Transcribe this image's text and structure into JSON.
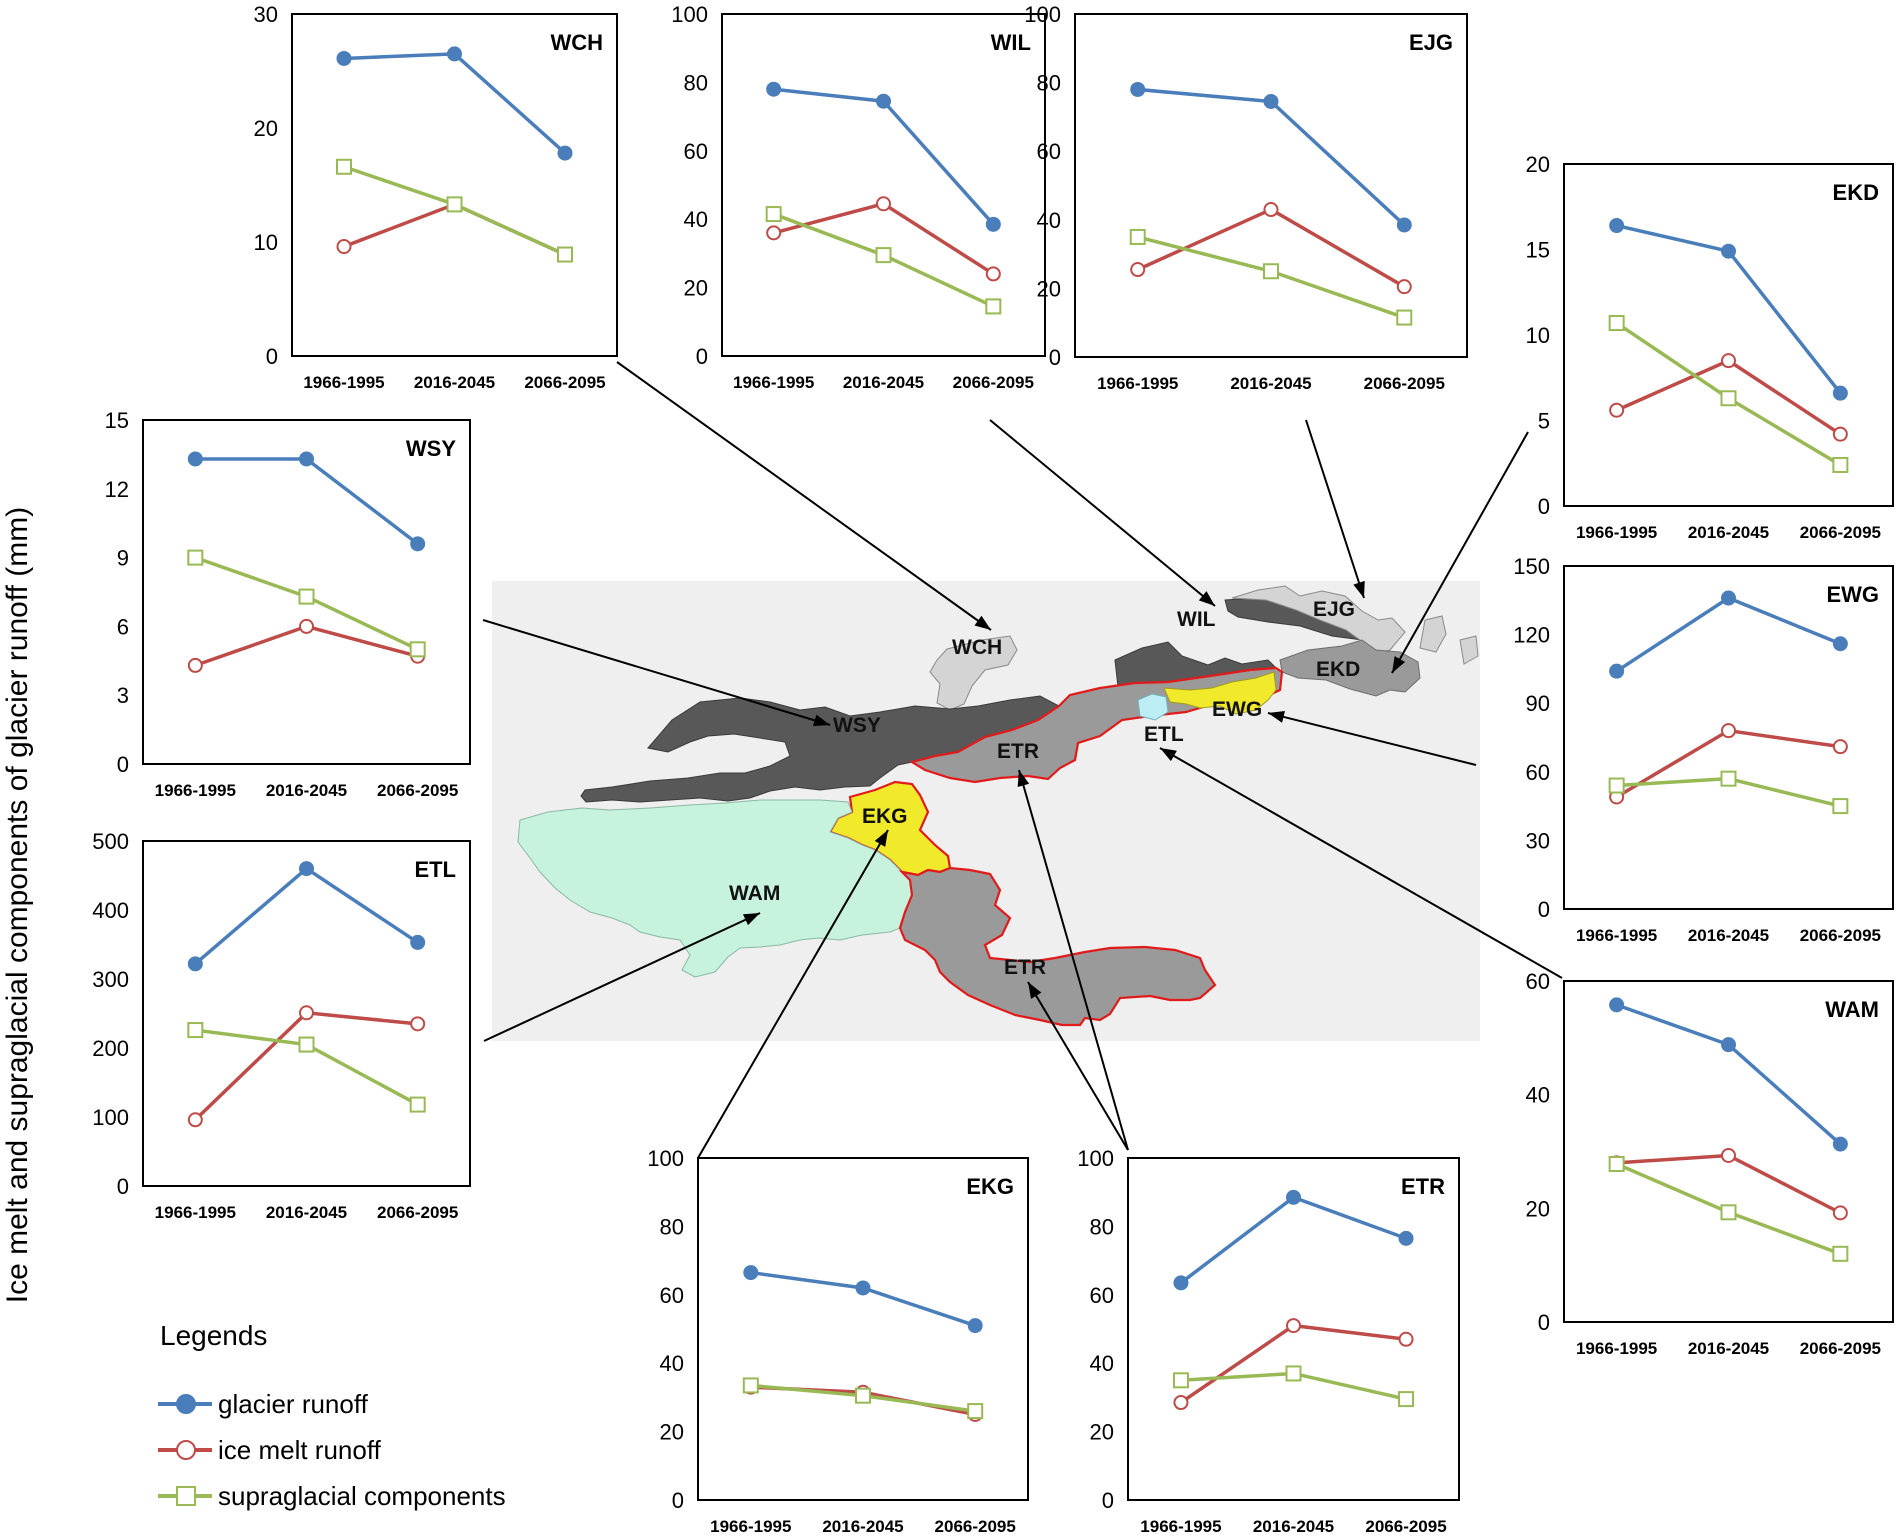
{
  "figure": {
    "ylabel": "Ice melt and supraglacial components of glacier runoff (mm)"
  },
  "legend": {
    "title": "Legends",
    "items": [
      {
        "name": "glacier runoff",
        "color": "#4a7ebb",
        "marker": "filled-circle"
      },
      {
        "name": "ice melt runoff",
        "color": "#be4b48",
        "marker": "open-circle"
      },
      {
        "name": "supraglacial components",
        "color": "#98b954",
        "marker": "open-square"
      }
    ]
  },
  "colors": {
    "glacier": "#4a7ebb",
    "icemelt": "#be4b48",
    "supra": "#98b954",
    "map_background": "#efefef",
    "basin_dark": "#585858",
    "basin_mid": "#9a9a9a",
    "basin_light": "#d4d4d4",
    "basin_yellow": "#f0ea2a",
    "basin_mint": "#c6f2de",
    "basin_cyan": "#bdeef5",
    "boundary_red": "#e21a1a"
  },
  "map": {
    "labels": [
      "WCH",
      "WSY",
      "WIL",
      "EJG",
      "EKD",
      "EWG",
      "ETL",
      "ETR",
      "EKG",
      "WAM",
      "ETR"
    ]
  },
  "chart_data": [
    {
      "type": "line",
      "title": "WCH",
      "categories": [
        "1966-1995",
        "2016-2045",
        "2066-2095"
      ],
      "ylim": [
        0,
        30
      ],
      "yticks": [
        "0",
        "10",
        "20",
        "30"
      ],
      "series": [
        {
          "name": "glacier runoff",
          "values": [
            26.1,
            26.5,
            17.8
          ]
        },
        {
          "name": "ice melt runoff",
          "values": [
            9.6,
            13.3,
            8.9
          ]
        },
        {
          "name": "supraglacial components",
          "values": [
            16.6,
            13.3,
            8.9
          ]
        }
      ]
    },
    {
      "type": "line",
      "title": "WIL",
      "categories": [
        "1966-1995",
        "2016-2045",
        "2066-2095"
      ],
      "ylim": [
        0,
        100
      ],
      "yticks": [
        "0",
        "20",
        "40",
        "60",
        "80",
        "100"
      ],
      "series": [
        {
          "name": "glacier runoff",
          "values": [
            78,
            74.5,
            38.5
          ]
        },
        {
          "name": "ice melt runoff",
          "values": [
            36,
            44.5,
            24
          ]
        },
        {
          "name": "supraglacial components",
          "values": [
            41.5,
            29.5,
            14.5
          ]
        }
      ]
    },
    {
      "type": "line",
      "title": "EJG",
      "categories": [
        "1966-1995",
        "2016-2045",
        "2066-2095"
      ],
      "ylim": [
        0,
        100
      ],
      "yticks": [
        "0",
        "20",
        "40",
        "60",
        "80",
        "100"
      ],
      "series": [
        {
          "name": "glacier runoff",
          "values": [
            78,
            74.5,
            38.5
          ]
        },
        {
          "name": "ice melt runoff",
          "values": [
            25.5,
            43,
            20.5
          ]
        },
        {
          "name": "supraglacial components",
          "values": [
            35,
            25,
            11.5
          ]
        }
      ]
    },
    {
      "type": "line",
      "title": "EKD",
      "categories": [
        "1966-1995",
        "2016-2045",
        "2066-2095"
      ],
      "ylim": [
        0,
        20
      ],
      "yticks": [
        "0",
        "5",
        "10",
        "15",
        "20"
      ],
      "series": [
        {
          "name": "glacier runoff",
          "values": [
            16.4,
            14.9,
            6.6
          ]
        },
        {
          "name": "ice melt runoff",
          "values": [
            5.6,
            8.5,
            4.2
          ]
        },
        {
          "name": "supraglacial components",
          "values": [
            10.7,
            6.3,
            2.4
          ]
        }
      ]
    },
    {
      "type": "line",
      "title": "WSY",
      "categories": [
        "1966-1995",
        "2016-2045",
        "2066-2095"
      ],
      "ylim": [
        0,
        15
      ],
      "yticks": [
        "0",
        "3",
        "6",
        "9",
        "12",
        "15"
      ],
      "series": [
        {
          "name": "glacier runoff",
          "values": [
            13.3,
            13.3,
            9.6
          ]
        },
        {
          "name": "ice melt runoff",
          "values": [
            4.3,
            6.0,
            4.7
          ]
        },
        {
          "name": "supraglacial components",
          "values": [
            9.0,
            7.3,
            5.0
          ]
        }
      ]
    },
    {
      "type": "line",
      "title": "EWG",
      "categories": [
        "1966-1995",
        "2016-2045",
        "2066-2095"
      ],
      "ylim": [
        0,
        150
      ],
      "yticks": [
        "0",
        "30",
        "60",
        "90",
        "120",
        "150"
      ],
      "series": [
        {
          "name": "glacier runoff",
          "values": [
            104,
            136,
            116
          ]
        },
        {
          "name": "ice melt runoff",
          "values": [
            49,
            78,
            71
          ]
        },
        {
          "name": "supraglacial components",
          "values": [
            54,
            57,
            45
          ]
        }
      ]
    },
    {
      "type": "line",
      "title": "WAM",
      "categories": [
        "1966-1995",
        "2016-2045",
        "2066-2095"
      ],
      "ylim": [
        0,
        60
      ],
      "yticks": [
        "0",
        "20",
        "40",
        "60"
      ],
      "series": [
        {
          "name": "glacier runoff",
          "values": [
            55.8,
            48.8,
            31.3
          ]
        },
        {
          "name": "ice melt runoff",
          "values": [
            28,
            29.3,
            19.2
          ]
        },
        {
          "name": "supraglacial components",
          "values": [
            27.8,
            19.3,
            12
          ]
        }
      ]
    },
    {
      "type": "line",
      "title": "ETL",
      "categories": [
        "1966-1995",
        "2016-2045",
        "2066-2095"
      ],
      "ylim": [
        0,
        500
      ],
      "yticks": [
        "0",
        "100",
        "200",
        "300",
        "400",
        "500"
      ],
      "series": [
        {
          "name": "glacier runoff",
          "values": [
            322,
            460,
            353
          ]
        },
        {
          "name": "ice melt runoff",
          "values": [
            96,
            251,
            235
          ]
        },
        {
          "name": "supraglacial components",
          "values": [
            226,
            205,
            118
          ]
        }
      ]
    },
    {
      "type": "line",
      "title": "EKG",
      "categories": [
        "1966-1995",
        "2016-2045",
        "2066-2095"
      ],
      "ylim": [
        0,
        100
      ],
      "yticks": [
        "0",
        "20",
        "40",
        "60",
        "80",
        "100"
      ],
      "series": [
        {
          "name": "glacier runoff",
          "values": [
            66.5,
            62,
            51
          ]
        },
        {
          "name": "ice melt runoff",
          "values": [
            33,
            31.5,
            25
          ]
        },
        {
          "name": "supraglacial components",
          "values": [
            33.5,
            30.5,
            26
          ]
        }
      ]
    },
    {
      "type": "line",
      "title": "ETR",
      "categories": [
        "1966-1995",
        "2016-2045",
        "2066-2095"
      ],
      "ylim": [
        0,
        100
      ],
      "yticks": [
        "0",
        "20",
        "40",
        "60",
        "80",
        "100"
      ],
      "series": [
        {
          "name": "glacier runoff",
          "values": [
            63.5,
            88.5,
            76.5
          ]
        },
        {
          "name": "ice melt runoff",
          "values": [
            28.5,
            51,
            47
          ]
        },
        {
          "name": "supraglacial components",
          "values": [
            35,
            37,
            29.5
          ]
        }
      ]
    }
  ]
}
